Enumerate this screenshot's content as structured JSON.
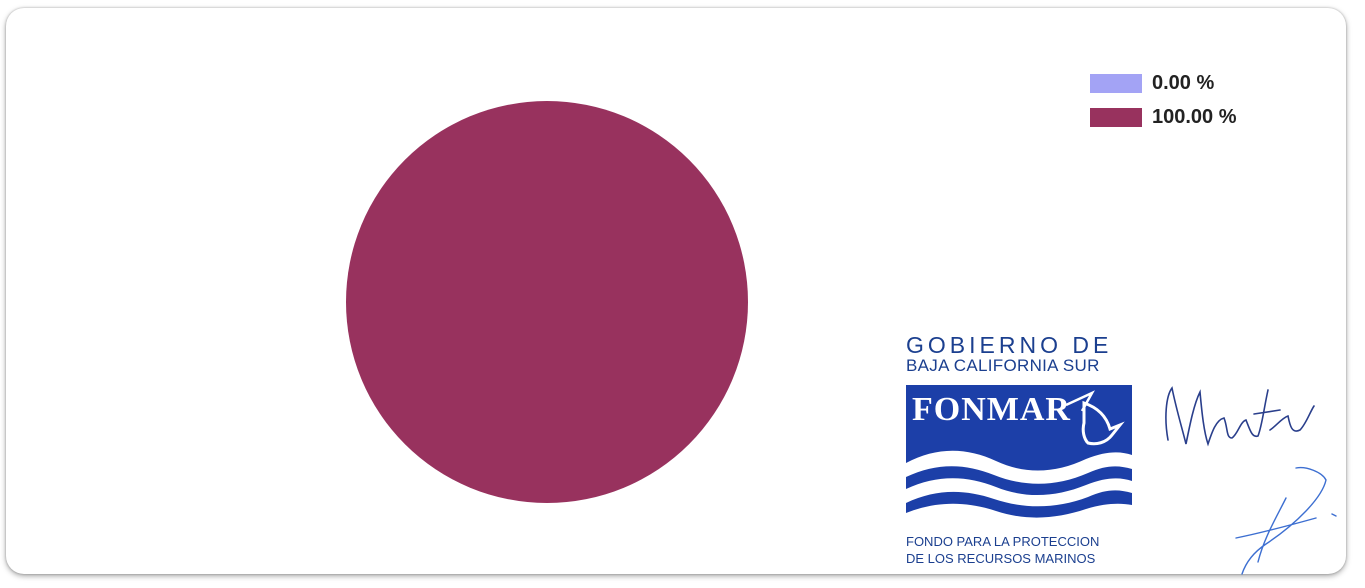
{
  "chart_data": {
    "type": "pie",
    "slices": [
      {
        "label": "0.00 %",
        "value": 0.0,
        "color": "#a3a3f5"
      },
      {
        "label": "100.00 %",
        "value": 100.0,
        "color": "#98325e"
      }
    ],
    "legend_position": "top-right"
  },
  "legend": {
    "items": [
      {
        "label": "0.00 %",
        "color": "#a3a3f5"
      },
      {
        "label": "100.00 %",
        "color": "#98325e"
      }
    ]
  },
  "logo": {
    "line1": "GOBIERNO DE",
    "line2": "BAJA CALIFORNIA SUR",
    "name": "FONMAR",
    "footer_line1": "FONDO PARA LA PROTECCION",
    "footer_line2": "DE LOS RECURSOS MARINOS"
  }
}
